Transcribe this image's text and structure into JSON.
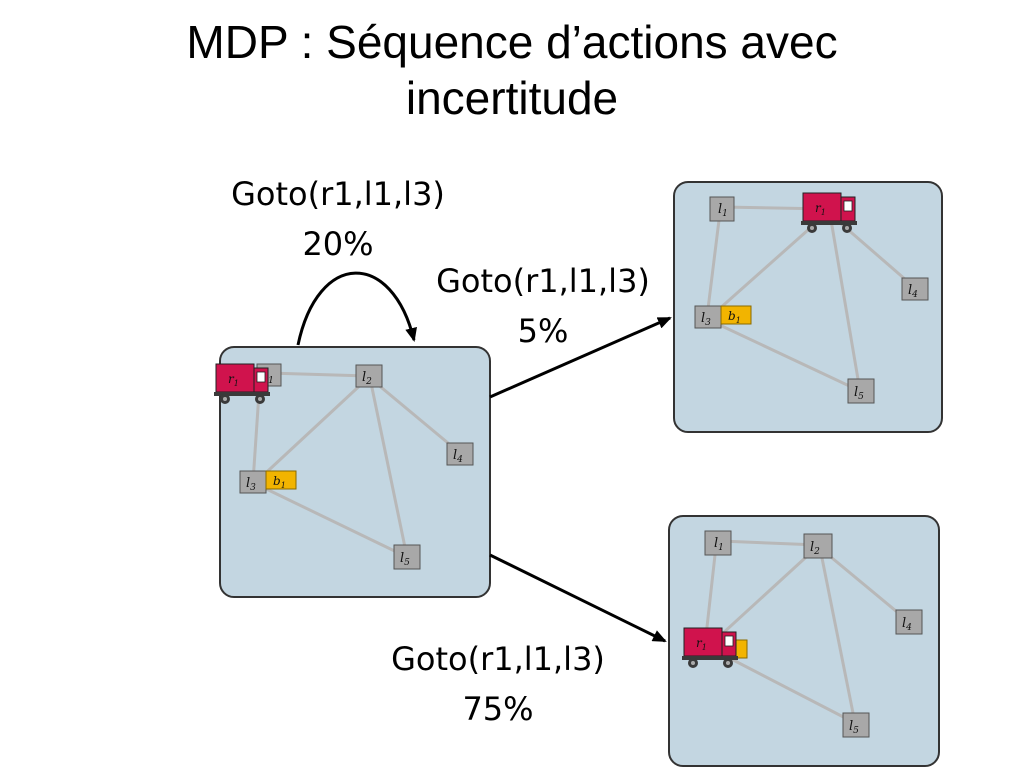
{
  "slide": {
    "title_line1": "MDP : Séquence d’actions avec",
    "title_line2": "incertitude"
  },
  "colors": {
    "state_fill": "#c3d6e1",
    "state_stroke": "#333333",
    "road": "#b8b8b8",
    "location_fill": "#a8a8a8",
    "truck": "#d0134d",
    "block": "#f2b400",
    "arrow": "#000000"
  },
  "transitions": [
    {
      "id": "self-loop",
      "action": "Goto(r1,l1,l3)",
      "probability": "20%"
    },
    {
      "id": "to-top-state",
      "action": "Goto(r1,l1,l3)",
      "probability": "5%"
    },
    {
      "id": "to-bottom-state",
      "action": "Goto(r1,l1,l3)",
      "probability": "75%"
    }
  ],
  "states": [
    {
      "id": "initial",
      "truck_at": "l1",
      "block_at": "l3",
      "truck_carries_block": false
    },
    {
      "id": "top",
      "truck_at": "l2",
      "block_at": "l3",
      "truck_carries_block": false
    },
    {
      "id": "bottom",
      "truck_at": "l3",
      "block_at": "truck",
      "truck_carries_block": true
    }
  ],
  "labels": {
    "truck": "r",
    "truck_sub": "1",
    "block": "b",
    "block_sub": "1",
    "loc": "l",
    "l1_sub": "1",
    "l2_sub": "2",
    "l3_sub": "3",
    "l4_sub": "4",
    "l5_sub": "5"
  }
}
